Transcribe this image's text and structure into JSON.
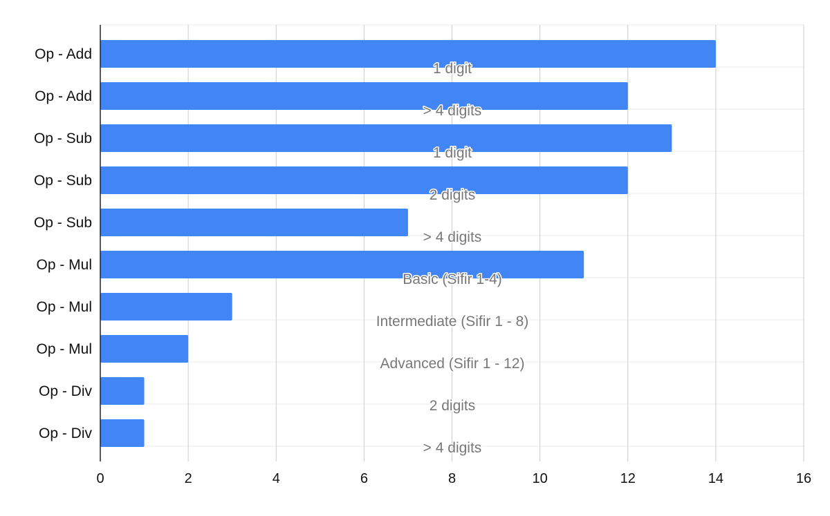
{
  "chart_data": {
    "type": "bar",
    "orientation": "horizontal",
    "title": "",
    "xlabel": "",
    "ylabel": "",
    "xlim": [
      0,
      16
    ],
    "x_ticks": [
      0,
      2,
      4,
      6,
      8,
      10,
      12,
      14,
      16
    ],
    "grid": true,
    "legend": "none",
    "categories": [
      "Op - Add",
      "Op - Add",
      "Op - Sub",
      "Op - Sub",
      "Op - Sub",
      "Op - Mul",
      "Op - Mul",
      "Op - Mul",
      "Op - Div",
      "Op - Div"
    ],
    "sub_labels": [
      "1 digit",
      "> 4 digits",
      "1 digit",
      "2 digits",
      "> 4 digits",
      "Basic (Sifir 1-4)",
      "Intermediate (Sifir 1 - 8)",
      "Advanced (Sifir 1 - 12)",
      "2 digits",
      "> 4 digits"
    ],
    "values": [
      14,
      12,
      13,
      12,
      7,
      11,
      3,
      2,
      1,
      1
    ],
    "bar_color": "#4285f4",
    "sub_label_color": "#777777"
  }
}
